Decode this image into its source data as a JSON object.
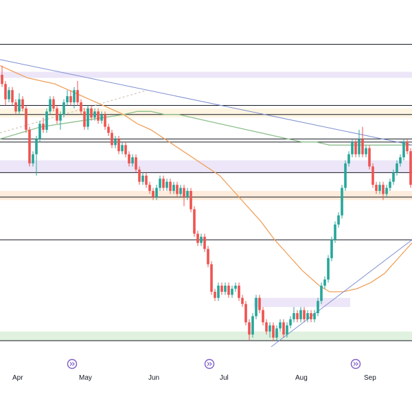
{
  "chart_data": {
    "type": "candlestick",
    "x_ticks": [
      "Apr",
      "May",
      "Jun",
      "Jul",
      "Aug",
      "Sep"
    ],
    "ylim": [
      0,
      100
    ],
    "grid": false,
    "colors": {
      "up": "#26a69a",
      "down": "#ef5350",
      "trendline": "#7e8fd1",
      "ma_fast": "#f0a05a",
      "ma_slow": "#8cbf8c",
      "level": "#131722",
      "zone_purple": "#e9e2f7",
      "zone_yellow": "#fdf3dd",
      "zone_orange": "#fde9d5",
      "zone_green": "#dcefd9",
      "event_icon": "#7d5cc8"
    },
    "event_markers": [
      {
        "x": 105,
        "icon": "double-chevron-right-icon"
      },
      {
        "x": 305,
        "icon": "double-chevron-right-icon"
      },
      {
        "x": 518,
        "icon": "double-chevron-right-icon"
      }
    ],
    "horizontal_levels": [
      99,
      79,
      76,
      68,
      67,
      57,
      49,
      35,
      2
    ],
    "zones": [
      {
        "y1": 90,
        "y2": 88,
        "color": "zone_purple"
      },
      {
        "y1": 78,
        "y2": 75,
        "color": "zone_yellow"
      },
      {
        "y1": 61,
        "y2": 57,
        "color": "zone_purple"
      },
      {
        "y1": 51,
        "y2": 48,
        "color": "zone_orange"
      },
      {
        "y1": 16,
        "y2": 13,
        "color": "zone_purple",
        "x_from": 370,
        "x_to": 510
      },
      {
        "y1": 5,
        "y2": 2,
        "color": "zone_green"
      }
    ],
    "trendlines": [
      {
        "x1": 0,
        "y1": 94,
        "x2": 600,
        "y2": 66,
        "style": "solid"
      },
      {
        "x1": 395,
        "y1": 0,
        "x2": 600,
        "y2": 35,
        "style": "solid"
      },
      {
        "x1": 0,
        "y1": 70,
        "x2": 215,
        "y2": 84,
        "style": "dashed"
      }
    ],
    "ma_fast": [
      [
        0,
        92
      ],
      [
        20,
        90
      ],
      [
        40,
        88
      ],
      [
        60,
        87
      ],
      [
        80,
        86
      ],
      [
        100,
        84
      ],
      [
        120,
        82
      ],
      [
        140,
        80
      ],
      [
        160,
        78
      ],
      [
        180,
        76
      ],
      [
        200,
        73
      ],
      [
        220,
        71
      ],
      [
        240,
        68
      ],
      [
        260,
        65
      ],
      [
        280,
        62
      ],
      [
        300,
        59
      ],
      [
        320,
        56
      ],
      [
        340,
        51
      ],
      [
        360,
        46
      ],
      [
        380,
        41
      ],
      [
        400,
        35
      ],
      [
        420,
        30
      ],
      [
        440,
        25
      ],
      [
        455,
        22
      ],
      [
        465,
        20
      ],
      [
        480,
        18
      ],
      [
        500,
        18
      ],
      [
        520,
        19
      ],
      [
        540,
        21
      ],
      [
        560,
        24
      ],
      [
        580,
        29
      ],
      [
        600,
        34
      ]
    ],
    "ma_slow": [
      [
        0,
        68
      ],
      [
        30,
        70
      ],
      [
        60,
        72
      ],
      [
        90,
        73
      ],
      [
        120,
        74
      ],
      [
        150,
        75
      ],
      [
        180,
        76
      ],
      [
        200,
        77
      ],
      [
        220,
        77
      ],
      [
        240,
        76
      ],
      [
        260,
        76
      ],
      [
        280,
        75
      ],
      [
        300,
        74
      ],
      [
        320,
        73
      ],
      [
        340,
        72
      ],
      [
        360,
        71
      ],
      [
        380,
        70
      ],
      [
        400,
        69
      ],
      [
        420,
        68
      ],
      [
        440,
        67
      ],
      [
        460,
        67
      ],
      [
        480,
        66
      ],
      [
        500,
        66
      ],
      [
        520,
        66
      ],
      [
        540,
        66
      ],
      [
        560,
        66
      ],
      [
        580,
        66
      ],
      [
        600,
        66
      ]
    ],
    "candles": [
      {
        "x": 3,
        "o": 89,
        "c": 86,
        "h": 92,
        "l": 85
      },
      {
        "x": 8,
        "o": 86,
        "c": 81,
        "h": 87,
        "l": 79
      },
      {
        "x": 13,
        "o": 81,
        "c": 84,
        "h": 85,
        "l": 80
      },
      {
        "x": 18,
        "o": 84,
        "c": 80,
        "h": 85,
        "l": 79
      },
      {
        "x": 23,
        "o": 80,
        "c": 77,
        "h": 81,
        "l": 76
      },
      {
        "x": 28,
        "o": 77,
        "c": 81,
        "h": 83,
        "l": 76
      },
      {
        "x": 33,
        "o": 81,
        "c": 78,
        "h": 82,
        "l": 77
      },
      {
        "x": 38,
        "o": 78,
        "c": 71,
        "h": 79,
        "l": 70
      },
      {
        "x": 43,
        "o": 71,
        "c": 60,
        "h": 72,
        "l": 59
      },
      {
        "x": 48,
        "o": 60,
        "c": 63,
        "h": 64,
        "l": 59
      },
      {
        "x": 53,
        "o": 63,
        "c": 68,
        "h": 69,
        "l": 56
      },
      {
        "x": 58,
        "o": 68,
        "c": 73,
        "h": 74,
        "l": 67
      },
      {
        "x": 63,
        "o": 73,
        "c": 71,
        "h": 75,
        "l": 70
      },
      {
        "x": 68,
        "o": 71,
        "c": 77,
        "h": 78,
        "l": 70
      },
      {
        "x": 73,
        "o": 77,
        "c": 81,
        "h": 82,
        "l": 76
      },
      {
        "x": 78,
        "o": 81,
        "c": 78,
        "h": 82,
        "l": 77
      },
      {
        "x": 83,
        "o": 78,
        "c": 74,
        "h": 79,
        "l": 73
      },
      {
        "x": 88,
        "o": 74,
        "c": 76,
        "h": 77,
        "l": 71
      },
      {
        "x": 93,
        "o": 76,
        "c": 80,
        "h": 81,
        "l": 75
      },
      {
        "x": 98,
        "o": 80,
        "c": 82,
        "h": 84,
        "l": 79
      },
      {
        "x": 103,
        "o": 82,
        "c": 80,
        "h": 84,
        "l": 79
      },
      {
        "x": 108,
        "o": 80,
        "c": 84,
        "h": 85,
        "l": 78
      },
      {
        "x": 113,
        "o": 84,
        "c": 80,
        "h": 87,
        "l": 79
      },
      {
        "x": 118,
        "o": 80,
        "c": 77,
        "h": 81,
        "l": 76
      },
      {
        "x": 123,
        "o": 77,
        "c": 72,
        "h": 78,
        "l": 71
      },
      {
        "x": 128,
        "o": 72,
        "c": 78,
        "h": 79,
        "l": 71
      },
      {
        "x": 133,
        "o": 78,
        "c": 75,
        "h": 79,
        "l": 74
      },
      {
        "x": 138,
        "o": 75,
        "c": 77,
        "h": 78,
        "l": 74
      },
      {
        "x": 143,
        "o": 77,
        "c": 74,
        "h": 78,
        "l": 73
      },
      {
        "x": 148,
        "o": 74,
        "c": 76,
        "h": 77,
        "l": 73
      },
      {
        "x": 153,
        "o": 76,
        "c": 72,
        "h": 77,
        "l": 71
      },
      {
        "x": 158,
        "o": 72,
        "c": 70,
        "h": 73,
        "l": 69
      },
      {
        "x": 163,
        "o": 70,
        "c": 66,
        "h": 71,
        "l": 65
      },
      {
        "x": 168,
        "o": 66,
        "c": 68,
        "h": 69,
        "l": 65
      },
      {
        "x": 173,
        "o": 68,
        "c": 64,
        "h": 69,
        "l": 63
      },
      {
        "x": 178,
        "o": 64,
        "c": 66,
        "h": 67,
        "l": 63
      },
      {
        "x": 183,
        "o": 66,
        "c": 63,
        "h": 67,
        "l": 62
      },
      {
        "x": 188,
        "o": 63,
        "c": 60,
        "h": 64,
        "l": 59
      },
      {
        "x": 193,
        "o": 60,
        "c": 62,
        "h": 63,
        "l": 59
      },
      {
        "x": 198,
        "o": 62,
        "c": 58,
        "h": 63,
        "l": 57
      },
      {
        "x": 203,
        "o": 58,
        "c": 54,
        "h": 59,
        "l": 53
      },
      {
        "x": 208,
        "o": 54,
        "c": 56,
        "h": 57,
        "l": 53
      },
      {
        "x": 213,
        "o": 56,
        "c": 53,
        "h": 57,
        "l": 52
      },
      {
        "x": 218,
        "o": 53,
        "c": 51,
        "h": 54,
        "l": 50
      },
      {
        "x": 223,
        "o": 51,
        "c": 49,
        "h": 52,
        "l": 48
      },
      {
        "x": 228,
        "o": 49,
        "c": 52,
        "h": 53,
        "l": 48
      },
      {
        "x": 233,
        "o": 52,
        "c": 55,
        "h": 56,
        "l": 51
      },
      {
        "x": 238,
        "o": 55,
        "c": 52,
        "h": 56,
        "l": 51
      },
      {
        "x": 243,
        "o": 52,
        "c": 54,
        "h": 55,
        "l": 51
      },
      {
        "x": 248,
        "o": 54,
        "c": 51,
        "h": 55,
        "l": 50
      },
      {
        "x": 253,
        "o": 51,
        "c": 53,
        "h": 54,
        "l": 50
      },
      {
        "x": 258,
        "o": 53,
        "c": 50,
        "h": 54,
        "l": 49
      },
      {
        "x": 263,
        "o": 50,
        "c": 52,
        "h": 53,
        "l": 49
      },
      {
        "x": 268,
        "o": 52,
        "c": 49,
        "h": 53,
        "l": 46
      },
      {
        "x": 273,
        "o": 49,
        "c": 51,
        "h": 52,
        "l": 48
      },
      {
        "x": 278,
        "o": 51,
        "c": 45,
        "h": 52,
        "l": 44
      },
      {
        "x": 283,
        "o": 45,
        "c": 37,
        "h": 46,
        "l": 36
      },
      {
        "x": 288,
        "o": 37,
        "c": 34,
        "h": 38,
        "l": 33
      },
      {
        "x": 293,
        "o": 34,
        "c": 36,
        "h": 37,
        "l": 33
      },
      {
        "x": 298,
        "o": 36,
        "c": 32,
        "h": 37,
        "l": 31
      },
      {
        "x": 303,
        "o": 32,
        "c": 27,
        "h": 33,
        "l": 26
      },
      {
        "x": 308,
        "o": 27,
        "c": 18,
        "h": 28,
        "l": 17
      },
      {
        "x": 313,
        "o": 18,
        "c": 16,
        "h": 19,
        "l": 15
      },
      {
        "x": 318,
        "o": 16,
        "c": 20,
        "h": 21,
        "l": 15
      },
      {
        "x": 323,
        "o": 20,
        "c": 18,
        "h": 21,
        "l": 17
      },
      {
        "x": 328,
        "o": 18,
        "c": 20,
        "h": 21,
        "l": 17
      },
      {
        "x": 333,
        "o": 20,
        "c": 17,
        "h": 21,
        "l": 16
      },
      {
        "x": 338,
        "o": 17,
        "c": 19,
        "h": 20,
        "l": 16
      },
      {
        "x": 343,
        "o": 19,
        "c": 20,
        "h": 21,
        "l": 18
      },
      {
        "x": 348,
        "o": 20,
        "c": 16,
        "h": 21,
        "l": 15
      },
      {
        "x": 353,
        "o": 16,
        "c": 14,
        "h": 17,
        "l": 13
      },
      {
        "x": 358,
        "o": 14,
        "c": 8,
        "h": 15,
        "l": 7
      },
      {
        "x": 363,
        "o": 8,
        "c": 4,
        "h": 9,
        "l": 2
      },
      {
        "x": 368,
        "o": 4,
        "c": 10,
        "h": 11,
        "l": 3
      },
      {
        "x": 373,
        "o": 10,
        "c": 16,
        "h": 17,
        "l": 9
      },
      {
        "x": 378,
        "o": 16,
        "c": 12,
        "h": 17,
        "l": 11
      },
      {
        "x": 383,
        "o": 12,
        "c": 8,
        "h": 13,
        "l": 7
      },
      {
        "x": 388,
        "o": 8,
        "c": 5,
        "h": 9,
        "l": 4
      },
      {
        "x": 393,
        "o": 5,
        "c": 7,
        "h": 8,
        "l": 3
      },
      {
        "x": 398,
        "o": 7,
        "c": 3,
        "h": 8,
        "l": 2
      },
      {
        "x": 403,
        "o": 3,
        "c": 6,
        "h": 7,
        "l": 2
      },
      {
        "x": 408,
        "o": 6,
        "c": 8,
        "h": 9,
        "l": 5
      },
      {
        "x": 413,
        "o": 8,
        "c": 4,
        "h": 9,
        "l": 3
      },
      {
        "x": 418,
        "o": 4,
        "c": 7,
        "h": 8,
        "l": 3
      },
      {
        "x": 423,
        "o": 7,
        "c": 9,
        "h": 10,
        "l": 6
      },
      {
        "x": 428,
        "o": 9,
        "c": 11,
        "h": 13,
        "l": 8
      },
      {
        "x": 433,
        "o": 11,
        "c": 9,
        "h": 12,
        "l": 8
      },
      {
        "x": 438,
        "o": 9,
        "c": 12,
        "h": 13,
        "l": 8
      },
      {
        "x": 443,
        "o": 12,
        "c": 9,
        "h": 13,
        "l": 8
      },
      {
        "x": 448,
        "o": 9,
        "c": 11,
        "h": 12,
        "l": 8
      },
      {
        "x": 453,
        "o": 11,
        "c": 9,
        "h": 12,
        "l": 8
      },
      {
        "x": 458,
        "o": 9,
        "c": 11,
        "h": 12,
        "l": 8
      },
      {
        "x": 463,
        "o": 11,
        "c": 15,
        "h": 16,
        "l": 10
      },
      {
        "x": 468,
        "o": 15,
        "c": 20,
        "h": 21,
        "l": 14
      },
      {
        "x": 473,
        "o": 20,
        "c": 22,
        "h": 23,
        "l": 19
      },
      {
        "x": 478,
        "o": 22,
        "c": 29,
        "h": 30,
        "l": 21
      },
      {
        "x": 483,
        "o": 29,
        "c": 35,
        "h": 36,
        "l": 28
      },
      {
        "x": 488,
        "o": 35,
        "c": 40,
        "h": 41,
        "l": 34
      },
      {
        "x": 493,
        "o": 40,
        "c": 43,
        "h": 44,
        "l": 39
      },
      {
        "x": 498,
        "o": 43,
        "c": 52,
        "h": 53,
        "l": 42
      },
      {
        "x": 503,
        "o": 52,
        "c": 60,
        "h": 61,
        "l": 51
      },
      {
        "x": 508,
        "o": 60,
        "c": 63,
        "h": 64,
        "l": 59
      },
      {
        "x": 513,
        "o": 63,
        "c": 67,
        "h": 68,
        "l": 62
      },
      {
        "x": 518,
        "o": 67,
        "c": 63,
        "h": 68,
        "l": 62
      },
      {
        "x": 523,
        "o": 63,
        "c": 68,
        "h": 71,
        "l": 62
      },
      {
        "x": 528,
        "o": 68,
        "c": 63,
        "h": 72,
        "l": 62
      },
      {
        "x": 533,
        "o": 63,
        "c": 65,
        "h": 66,
        "l": 62
      },
      {
        "x": 538,
        "o": 65,
        "c": 59,
        "h": 66,
        "l": 58
      },
      {
        "x": 543,
        "o": 59,
        "c": 53,
        "h": 60,
        "l": 52
      },
      {
        "x": 548,
        "o": 53,
        "c": 51,
        "h": 54,
        "l": 50
      },
      {
        "x": 553,
        "o": 51,
        "c": 53,
        "h": 54,
        "l": 50
      },
      {
        "x": 558,
        "o": 53,
        "c": 50,
        "h": 54,
        "l": 48
      },
      {
        "x": 563,
        "o": 50,
        "c": 52,
        "h": 53,
        "l": 49
      },
      {
        "x": 568,
        "o": 52,
        "c": 54,
        "h": 55,
        "l": 51
      },
      {
        "x": 573,
        "o": 54,
        "c": 57,
        "h": 58,
        "l": 53
      },
      {
        "x": 578,
        "o": 57,
        "c": 60,
        "h": 61,
        "l": 56
      },
      {
        "x": 583,
        "o": 60,
        "c": 62,
        "h": 63,
        "l": 59
      },
      {
        "x": 588,
        "o": 62,
        "c": 67,
        "h": 68,
        "l": 61
      },
      {
        "x": 593,
        "o": 67,
        "c": 64,
        "h": 68,
        "l": 63
      },
      {
        "x": 598,
        "o": 64,
        "c": 53,
        "h": 65,
        "l": 52
      }
    ]
  }
}
